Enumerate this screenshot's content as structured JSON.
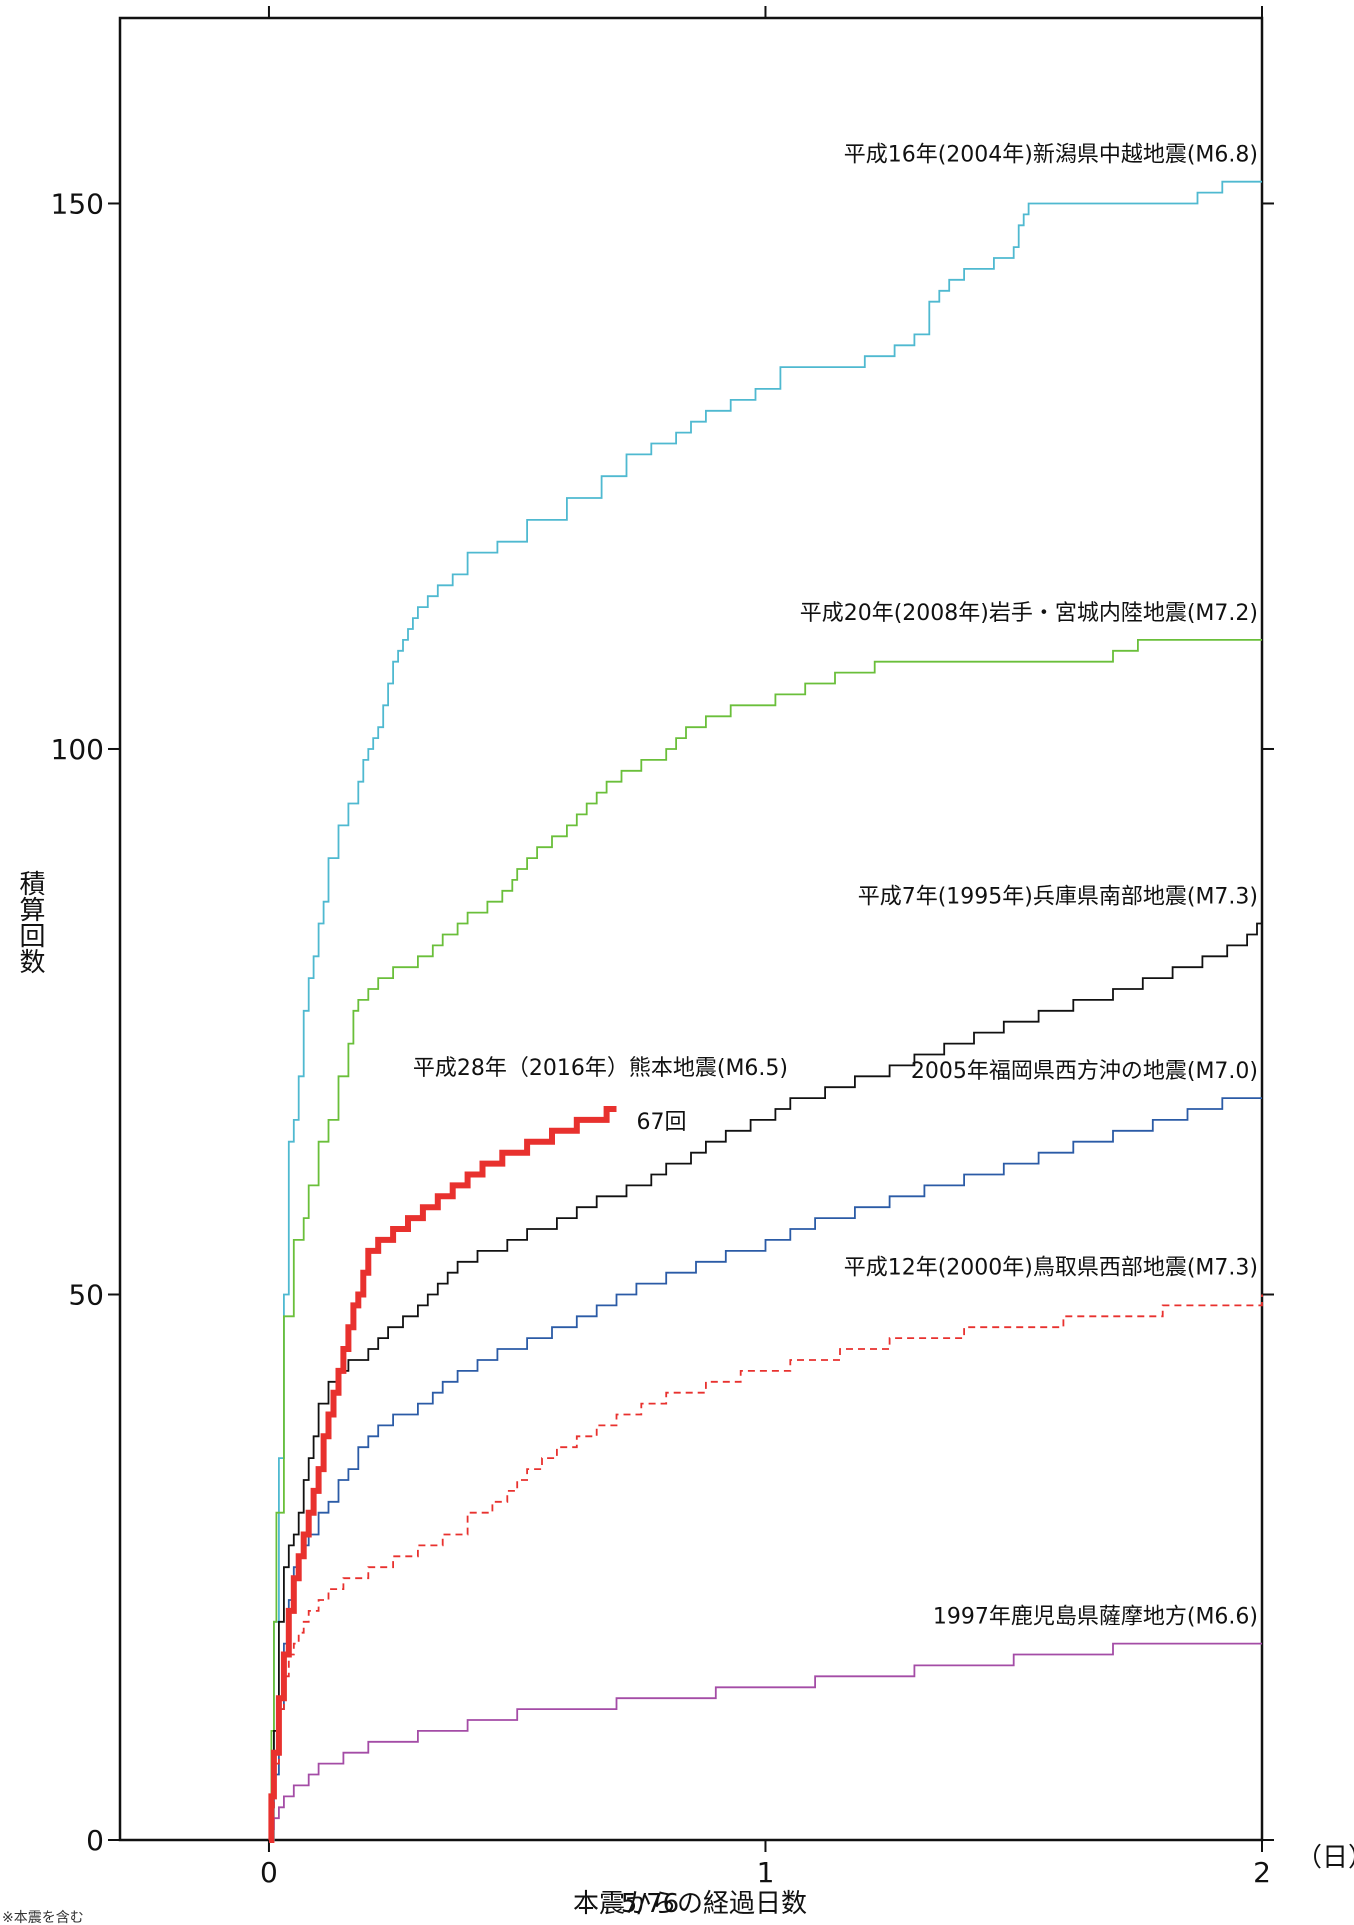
{
  "chart_data": {
    "type": "line",
    "xlabel": "本震からの経過日数",
    "x_unit": "（日）",
    "ylabel": "積算回数",
    "xlim": [
      -0.3,
      2.0
    ],
    "ylim": [
      0,
      167
    ],
    "x_ticks": [
      0,
      1,
      2
    ],
    "x_tick_labels": [
      "0",
      "1",
      "2"
    ],
    "y_ticks": [
      0,
      50,
      100,
      150
    ],
    "y_tick_labels": [
      "0",
      "50",
      "100",
      "150"
    ],
    "grid": false,
    "footnote": "※本震を含む",
    "page_number": "5/76",
    "series": [
      {
        "name": "平成16年(2004年)新潟県中越地震(M6.8)",
        "color": "#4fb9d0",
        "style": "solid",
        "points": [
          [
            0,
            0
          ],
          [
            0.01,
            20
          ],
          [
            0.02,
            35
          ],
          [
            0.03,
            50
          ],
          [
            0.04,
            64
          ],
          [
            0.05,
            66
          ],
          [
            0.06,
            70
          ],
          [
            0.07,
            76
          ],
          [
            0.08,
            79
          ],
          [
            0.09,
            81
          ],
          [
            0.1,
            84
          ],
          [
            0.11,
            86
          ],
          [
            0.12,
            90
          ],
          [
            0.14,
            93
          ],
          [
            0.16,
            95
          ],
          [
            0.18,
            97
          ],
          [
            0.19,
            99
          ],
          [
            0.2,
            100
          ],
          [
            0.21,
            101
          ],
          [
            0.22,
            102
          ],
          [
            0.23,
            104
          ],
          [
            0.24,
            106
          ],
          [
            0.25,
            108
          ],
          [
            0.26,
            109
          ],
          [
            0.27,
            110
          ],
          [
            0.28,
            111
          ],
          [
            0.29,
            112
          ],
          [
            0.3,
            113
          ],
          [
            0.32,
            114
          ],
          [
            0.34,
            115
          ],
          [
            0.37,
            116
          ],
          [
            0.4,
            118
          ],
          [
            0.46,
            119
          ],
          [
            0.52,
            121
          ],
          [
            0.6,
            123
          ],
          [
            0.67,
            125
          ],
          [
            0.72,
            127
          ],
          [
            0.77,
            128
          ],
          [
            0.82,
            129
          ],
          [
            0.85,
            130
          ],
          [
            0.88,
            131
          ],
          [
            0.93,
            132
          ],
          [
            0.98,
            133
          ],
          [
            1.03,
            135
          ],
          [
            1.2,
            136
          ],
          [
            1.26,
            137
          ],
          [
            1.3,
            138
          ],
          [
            1.33,
            141
          ],
          [
            1.35,
            142
          ],
          [
            1.37,
            143
          ],
          [
            1.4,
            144
          ],
          [
            1.46,
            145
          ],
          [
            1.5,
            146
          ],
          [
            1.51,
            148
          ],
          [
            1.52,
            149
          ],
          [
            1.53,
            150
          ],
          [
            1.87,
            151
          ],
          [
            1.92,
            152
          ],
          [
            2.0,
            152
          ]
        ]
      },
      {
        "name": "平成20年(2008年)岩手・宮城内陸地震(M7.2)",
        "color": "#6abf3a",
        "style": "solid",
        "points": [
          [
            0,
            0
          ],
          [
            0.005,
            10
          ],
          [
            0.01,
            20
          ],
          [
            0.015,
            30
          ],
          [
            0.03,
            48
          ],
          [
            0.05,
            55
          ],
          [
            0.07,
            57
          ],
          [
            0.08,
            60
          ],
          [
            0.1,
            64
          ],
          [
            0.12,
            66
          ],
          [
            0.14,
            70
          ],
          [
            0.16,
            73
          ],
          [
            0.17,
            76
          ],
          [
            0.18,
            77
          ],
          [
            0.2,
            78
          ],
          [
            0.22,
            79
          ],
          [
            0.25,
            80
          ],
          [
            0.3,
            81
          ],
          [
            0.33,
            82
          ],
          [
            0.35,
            83
          ],
          [
            0.38,
            84
          ],
          [
            0.4,
            85
          ],
          [
            0.44,
            86
          ],
          [
            0.47,
            87
          ],
          [
            0.49,
            88
          ],
          [
            0.5,
            89
          ],
          [
            0.52,
            90
          ],
          [
            0.54,
            91
          ],
          [
            0.57,
            92
          ],
          [
            0.6,
            93
          ],
          [
            0.62,
            94
          ],
          [
            0.64,
            95
          ],
          [
            0.66,
            96
          ],
          [
            0.68,
            97
          ],
          [
            0.71,
            98
          ],
          [
            0.75,
            99
          ],
          [
            0.8,
            100
          ],
          [
            0.82,
            101
          ],
          [
            0.84,
            102
          ],
          [
            0.88,
            103
          ],
          [
            0.93,
            104
          ],
          [
            1.02,
            105
          ],
          [
            1.08,
            106
          ],
          [
            1.14,
            107
          ],
          [
            1.22,
            108
          ],
          [
            1.7,
            109
          ],
          [
            1.75,
            110
          ],
          [
            2.0,
            110
          ]
        ]
      },
      {
        "name": "平成7年(1995年)兵庫県南部地震(M7.3)",
        "color": "#111111",
        "style": "solid",
        "points": [
          [
            0,
            0
          ],
          [
            0.005,
            4
          ],
          [
            0.01,
            10
          ],
          [
            0.02,
            20
          ],
          [
            0.03,
            25
          ],
          [
            0.04,
            27
          ],
          [
            0.05,
            28
          ],
          [
            0.06,
            30
          ],
          [
            0.07,
            33
          ],
          [
            0.08,
            35
          ],
          [
            0.09,
            37
          ],
          [
            0.1,
            40
          ],
          [
            0.12,
            42
          ],
          [
            0.14,
            43
          ],
          [
            0.16,
            44
          ],
          [
            0.2,
            45
          ],
          [
            0.22,
            46
          ],
          [
            0.24,
            47
          ],
          [
            0.27,
            48
          ],
          [
            0.3,
            49
          ],
          [
            0.32,
            50
          ],
          [
            0.34,
            51
          ],
          [
            0.36,
            52
          ],
          [
            0.38,
            53
          ],
          [
            0.42,
            54
          ],
          [
            0.48,
            55
          ],
          [
            0.52,
            56
          ],
          [
            0.58,
            57
          ],
          [
            0.62,
            58
          ],
          [
            0.66,
            59
          ],
          [
            0.72,
            60
          ],
          [
            0.77,
            61
          ],
          [
            0.8,
            62
          ],
          [
            0.85,
            63
          ],
          [
            0.88,
            64
          ],
          [
            0.92,
            65
          ],
          [
            0.97,
            66
          ],
          [
            1.02,
            67
          ],
          [
            1.05,
            68
          ],
          [
            1.12,
            69
          ],
          [
            1.18,
            70
          ],
          [
            1.25,
            71
          ],
          [
            1.3,
            72
          ],
          [
            1.36,
            73
          ],
          [
            1.42,
            74
          ],
          [
            1.48,
            75
          ],
          [
            1.55,
            76
          ],
          [
            1.62,
            77
          ],
          [
            1.7,
            78
          ],
          [
            1.76,
            79
          ],
          [
            1.82,
            80
          ],
          [
            1.88,
            81
          ],
          [
            1.93,
            82
          ],
          [
            1.97,
            83
          ],
          [
            1.99,
            84
          ],
          [
            2.0,
            84
          ]
        ]
      },
      {
        "name": "2005年福岡県西方沖の地震(M7.0)",
        "color": "#2b5ba6",
        "style": "solid",
        "points": [
          [
            0,
            0
          ],
          [
            0.005,
            3
          ],
          [
            0.01,
            6
          ],
          [
            0.02,
            12
          ],
          [
            0.03,
            18
          ],
          [
            0.04,
            22
          ],
          [
            0.05,
            25
          ],
          [
            0.06,
            26
          ],
          [
            0.07,
            27
          ],
          [
            0.08,
            28
          ],
          [
            0.1,
            30
          ],
          [
            0.12,
            31
          ],
          [
            0.14,
            33
          ],
          [
            0.16,
            34
          ],
          [
            0.18,
            36
          ],
          [
            0.2,
            37
          ],
          [
            0.22,
            38
          ],
          [
            0.25,
            39
          ],
          [
            0.3,
            40
          ],
          [
            0.33,
            41
          ],
          [
            0.35,
            42
          ],
          [
            0.38,
            43
          ],
          [
            0.42,
            44
          ],
          [
            0.46,
            45
          ],
          [
            0.52,
            46
          ],
          [
            0.57,
            47
          ],
          [
            0.62,
            48
          ],
          [
            0.66,
            49
          ],
          [
            0.7,
            50
          ],
          [
            0.74,
            51
          ],
          [
            0.8,
            52
          ],
          [
            0.86,
            53
          ],
          [
            0.92,
            54
          ],
          [
            1.0,
            55
          ],
          [
            1.05,
            56
          ],
          [
            1.1,
            57
          ],
          [
            1.18,
            58
          ],
          [
            1.25,
            59
          ],
          [
            1.32,
            60
          ],
          [
            1.4,
            61
          ],
          [
            1.48,
            62
          ],
          [
            1.55,
            63
          ],
          [
            1.62,
            64
          ],
          [
            1.7,
            65
          ],
          [
            1.78,
            66
          ],
          [
            1.85,
            67
          ],
          [
            1.92,
            68
          ],
          [
            2.0,
            68
          ]
        ]
      },
      {
        "name": "平成12年(2000年)鳥取県西部地震(M7.3)",
        "color": "#e8312e",
        "style": "dashed",
        "points": [
          [
            0,
            0
          ],
          [
            0.005,
            3
          ],
          [
            0.01,
            7
          ],
          [
            0.02,
            12
          ],
          [
            0.03,
            15
          ],
          [
            0.04,
            17
          ],
          [
            0.05,
            18
          ],
          [
            0.06,
            19
          ],
          [
            0.07,
            20
          ],
          [
            0.08,
            21
          ],
          [
            0.1,
            22
          ],
          [
            0.12,
            23
          ],
          [
            0.15,
            24
          ],
          [
            0.2,
            25
          ],
          [
            0.25,
            26
          ],
          [
            0.3,
            27
          ],
          [
            0.35,
            28
          ],
          [
            0.4,
            30
          ],
          [
            0.45,
            31
          ],
          [
            0.48,
            32
          ],
          [
            0.5,
            33
          ],
          [
            0.52,
            34
          ],
          [
            0.55,
            35
          ],
          [
            0.58,
            36
          ],
          [
            0.62,
            37
          ],
          [
            0.66,
            38
          ],
          [
            0.7,
            39
          ],
          [
            0.75,
            40
          ],
          [
            0.8,
            41
          ],
          [
            0.88,
            42
          ],
          [
            0.95,
            43
          ],
          [
            1.05,
            44
          ],
          [
            1.15,
            45
          ],
          [
            1.25,
            46
          ],
          [
            1.4,
            47
          ],
          [
            1.6,
            48
          ],
          [
            1.8,
            49
          ],
          [
            2.0,
            50
          ]
        ]
      },
      {
        "name": "1997年鹿児島県薩摩地方(M6.6)",
        "color": "#a44ca6",
        "style": "solid",
        "points": [
          [
            0,
            0
          ],
          [
            0.005,
            1
          ],
          [
            0.01,
            2
          ],
          [
            0.02,
            3
          ],
          [
            0.03,
            4
          ],
          [
            0.05,
            5
          ],
          [
            0.08,
            6
          ],
          [
            0.1,
            7
          ],
          [
            0.15,
            8
          ],
          [
            0.2,
            9
          ],
          [
            0.3,
            10
          ],
          [
            0.4,
            11
          ],
          [
            0.5,
            12
          ],
          [
            0.7,
            13
          ],
          [
            0.9,
            14
          ],
          [
            1.1,
            15
          ],
          [
            1.3,
            16
          ],
          [
            1.5,
            17
          ],
          [
            1.7,
            18
          ],
          [
            2.0,
            18
          ]
        ]
      },
      {
        "name": "平成28年（2016年）熊本地震(M6.5)",
        "color": "#e8312e",
        "style": "bold",
        "end_label": "67回",
        "points": [
          [
            0,
            0
          ],
          [
            0.005,
            4
          ],
          [
            0.01,
            8
          ],
          [
            0.02,
            13
          ],
          [
            0.03,
            17
          ],
          [
            0.04,
            21
          ],
          [
            0.05,
            24
          ],
          [
            0.06,
            26
          ],
          [
            0.07,
            28
          ],
          [
            0.08,
            30
          ],
          [
            0.09,
            32
          ],
          [
            0.1,
            34
          ],
          [
            0.11,
            37
          ],
          [
            0.12,
            39
          ],
          [
            0.13,
            41
          ],
          [
            0.14,
            43
          ],
          [
            0.15,
            45
          ],
          [
            0.16,
            47
          ],
          [
            0.17,
            49
          ],
          [
            0.18,
            50
          ],
          [
            0.19,
            52
          ],
          [
            0.2,
            54
          ],
          [
            0.22,
            55
          ],
          [
            0.25,
            56
          ],
          [
            0.28,
            57
          ],
          [
            0.31,
            58
          ],
          [
            0.34,
            59
          ],
          [
            0.37,
            60
          ],
          [
            0.4,
            61
          ],
          [
            0.43,
            62
          ],
          [
            0.47,
            63
          ],
          [
            0.52,
            64
          ],
          [
            0.57,
            65
          ],
          [
            0.62,
            66
          ],
          [
            0.68,
            67
          ],
          [
            0.7,
            67
          ]
        ]
      }
    ]
  }
}
